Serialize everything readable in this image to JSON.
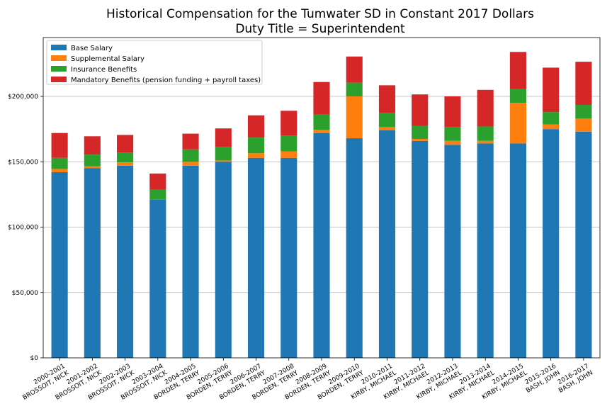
{
  "chart_data": {
    "type": "bar",
    "stacked": true,
    "title": "Historical Compensation for the Tumwater SD in Constant 2017 Dollars",
    "subtitle": "Duty Title = Superintendent",
    "xlabel": "",
    "ylabel": "",
    "ylim": [
      0,
      245000
    ],
    "yticks": [
      0,
      50000,
      100000,
      150000,
      200000
    ],
    "ytick_labels": [
      "$0",
      "$50,000",
      "$100,000",
      "$150,000",
      "$200,000"
    ],
    "grid": "horizontal",
    "legend_position": "top-left",
    "categories": [
      [
        "2000-2001",
        "BROSSOIT, NICK"
      ],
      [
        "2001-2002",
        "BROSSOIT, NICK"
      ],
      [
        "2002-2003",
        "BROSSOIT, NICK"
      ],
      [
        "2003-2004",
        "BROSSOIT, NICK"
      ],
      [
        "2004-2005",
        "BORDEN, TERRY"
      ],
      [
        "2005-2006",
        "BORDEN, TERRY"
      ],
      [
        "2006-2007",
        "BORDEN, TERRY"
      ],
      [
        "2007-2008",
        "BORDEN, TERRY"
      ],
      [
        "2008-2009",
        "BORDEN, TERRY"
      ],
      [
        "2009-2010",
        "BORDEN, TERRY"
      ],
      [
        "2010-2011",
        "KIRBY, MICHAEL"
      ],
      [
        "2011-2012",
        "KIRBY, MICHAEL"
      ],
      [
        "2012-2013",
        "KIRBY, MICHAEL"
      ],
      [
        "2013-2014",
        "KIRBY, MICHAEL"
      ],
      [
        "2014-2015",
        "KIRBY, MICHAEL"
      ],
      [
        "2015-2016",
        "BASH, JOHN"
      ],
      [
        "2016-2017",
        "BASH, JOHN"
      ]
    ],
    "series": [
      {
        "name": "Base Salary",
        "color": "#1f77b4",
        "values": [
          142000,
          145000,
          147000,
          121000,
          147000,
          150000,
          153000,
          153000,
          172000,
          168000,
          174000,
          166000,
          163000,
          164000,
          164000,
          175000,
          173000
        ]
      },
      {
        "name": "Supplemental Salary",
        "color": "#ff7f0e",
        "values": [
          2500,
          1500,
          2500,
          0,
          3000,
          1000,
          3500,
          5000,
          2500,
          32000,
          2500,
          1500,
          3000,
          2000,
          31000,
          3500,
          10000
        ]
      },
      {
        "name": "Insurance Benefits",
        "color": "#2ca02c",
        "values": [
          8500,
          9000,
          7500,
          8000,
          9500,
          10500,
          12000,
          12000,
          11500,
          10500,
          11000,
          10000,
          10500,
          11000,
          10500,
          9500,
          10500
        ]
      },
      {
        "name": "Mandatory Benefits (pension funding + payroll taxes)",
        "color": "#d62728",
        "values": [
          19000,
          14000,
          13500,
          12000,
          12000,
          14000,
          17000,
          19000,
          25000,
          20000,
          21000,
          24000,
          23500,
          28000,
          28500,
          34000,
          33000
        ]
      }
    ]
  }
}
